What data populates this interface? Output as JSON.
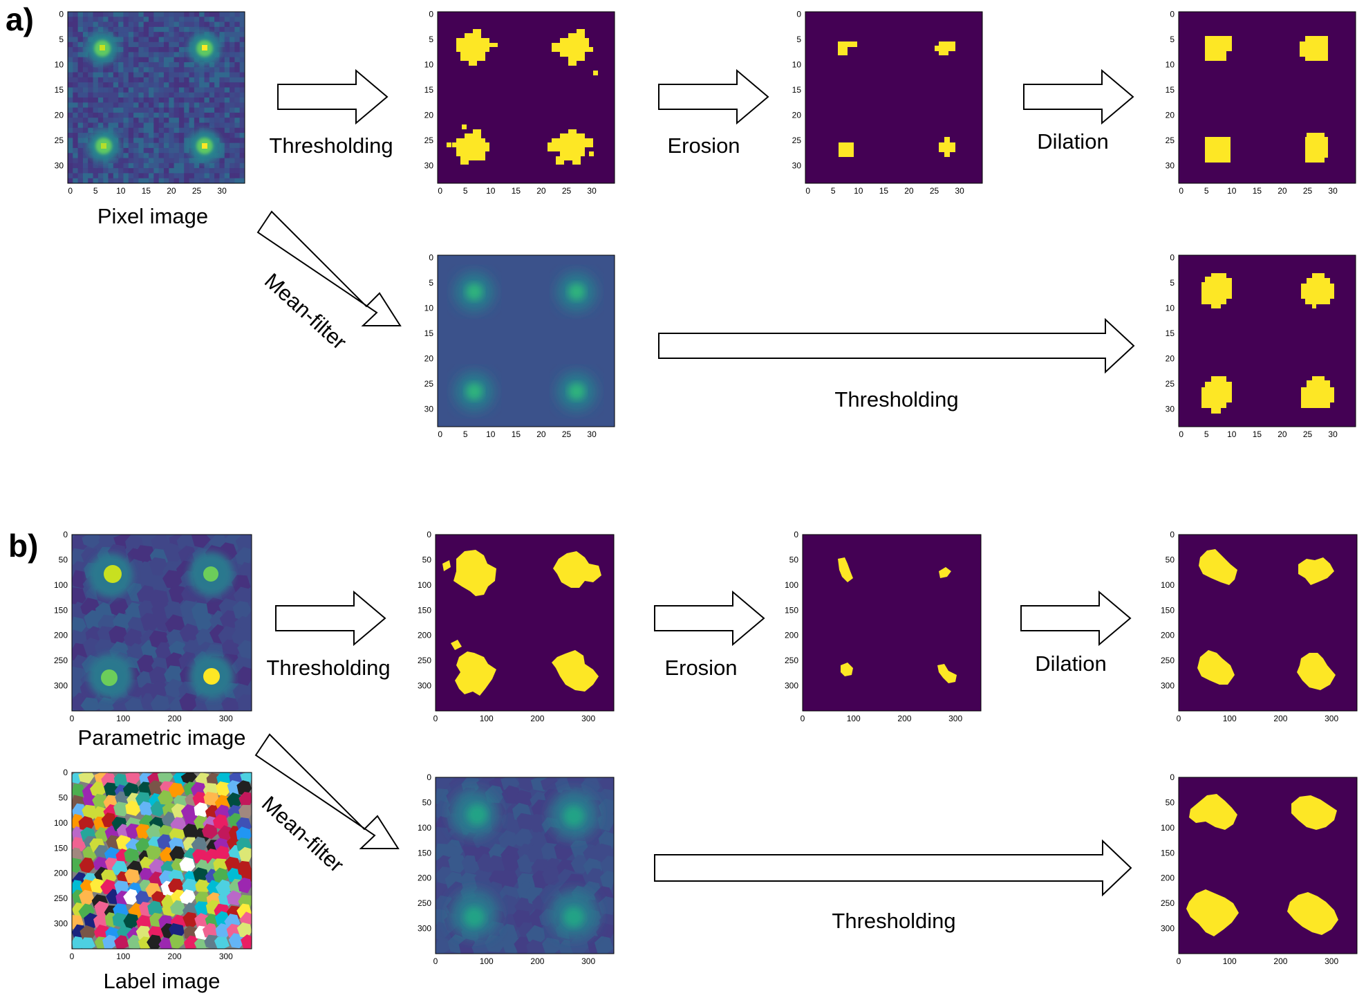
{
  "panels": {
    "a": {
      "label": "a)",
      "captions": {
        "input": "Pixel image"
      },
      "steps": {
        "threshold": "Thresholding",
        "erosion": "Erosion",
        "dilation": "Dilation",
        "mean_filter": "Mean-filter",
        "threshold_long": "Thresholding"
      },
      "ticks": [
        "0",
        "5",
        "10",
        "15",
        "20",
        "25",
        "30"
      ]
    },
    "b": {
      "label": "b)",
      "captions": {
        "parametric": "Parametric image",
        "label_image": "Label image"
      },
      "steps": {
        "threshold": "Thresholding",
        "erosion": "Erosion",
        "dilation": "Dilation",
        "mean_filter": "Mean-filter",
        "threshold_long": "Thresholding"
      },
      "ticks": [
        "0",
        "100",
        "200",
        "300"
      ],
      "ticks_y": [
        "0",
        "50",
        "100",
        "150",
        "200",
        "250",
        "300"
      ]
    }
  },
  "colors": {
    "viridis_dark": "#440154",
    "viridis_bg": "#3b4f8c",
    "viridis_mid": "#26838f",
    "viridis_green": "#35b779",
    "viridis_yellow": "#fde725",
    "arrow_stroke": "#000000",
    "arrow_fill": "#ffffff"
  }
}
